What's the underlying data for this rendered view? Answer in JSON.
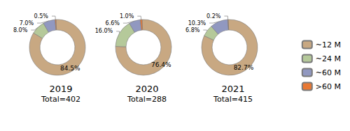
{
  "chart_data": [
    {
      "type": "pie",
      "title": "2019",
      "subtitle": "Total=402",
      "categories": [
        "~12 M",
        "~24 M",
        "~60 M",
        ">60 M"
      ],
      "values": [
        84.5,
        8.0,
        7.0,
        0.5
      ],
      "value_labels": [
        "84.5%",
        "8.0%",
        "7.0%",
        "0.5%"
      ],
      "colors": [
        "#c8a882",
        "#b5c99a",
        "#9198c0",
        "#e87833"
      ],
      "data_labels": true
    },
    {
      "type": "pie",
      "title": "2020",
      "subtitle": "Total=288",
      "categories": [
        "~12 M",
        "~24 M",
        "~60 M",
        ">60 M"
      ],
      "values": [
        76.4,
        16.0,
        6.6,
        1.0
      ],
      "value_labels": [
        "76.4%",
        "16.0%",
        "6.6%",
        "1.0%"
      ],
      "colors": [
        "#c8a882",
        "#b5c99a",
        "#9198c0",
        "#e87833"
      ],
      "data_labels": true
    },
    {
      "type": "pie",
      "title": "2021",
      "subtitle": "Total=415",
      "categories": [
        "~12 M",
        "~24 M",
        "~60 M",
        ">60 M"
      ],
      "values": [
        82.7,
        6.8,
        10.3,
        0.2
      ],
      "value_labels": [
        "82.7%",
        "6.8%",
        "10.3%",
        "0.2%"
      ],
      "colors": [
        "#c8a882",
        "#b5c99a",
        "#9198c0",
        "#e87833"
      ],
      "data_labels": true,
      "legend": "right"
    }
  ]
}
